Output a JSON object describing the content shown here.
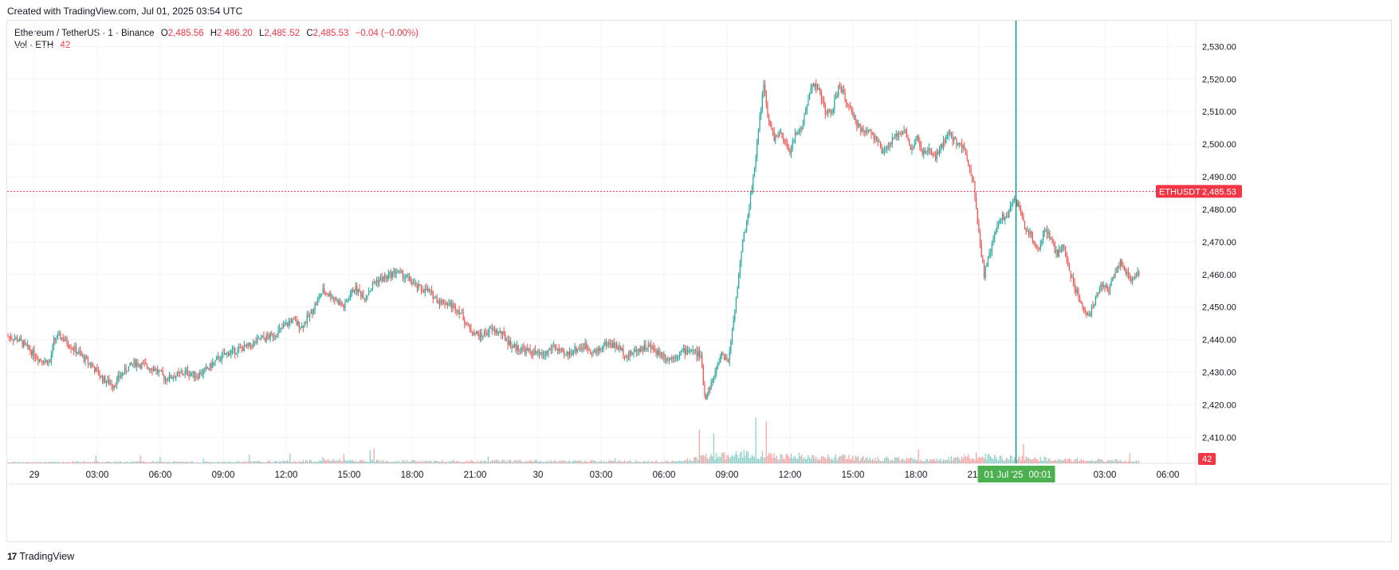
{
  "caption": "Created with TradingView.com, Jul 01, 2025 03:54 UTC",
  "brand": {
    "logo": "17",
    "name": "TradingView"
  },
  "legend": {
    "symbol": "Ethereum / TetherUS · 1 · Binance",
    "open_label": "O",
    "open": "2,485.56",
    "high_label": "H",
    "high": "2,486.20",
    "low_label": "L",
    "low": "2,485.52",
    "close_label": "C",
    "close": "2,485.53",
    "change": "−0.04 (−0.00%)",
    "vol_label": "Vol · ETH",
    "vol": "42"
  },
  "colors": {
    "up": "#26a69a",
    "down": "#ef5350",
    "crosshair": "#089981",
    "price_tag": "#f23645"
  },
  "price_tag": {
    "symbol": "ETHUSDT",
    "price": "2,485.53"
  },
  "volume_tag": "42",
  "crosshair_label": {
    "date": "01 Jul '25",
    "time": "00:01"
  },
  "chart_data": {
    "type": "candlestick",
    "title": "",
    "y_ticks": [
      "2,410.00",
      "2,420.00",
      "2,430.00",
      "2,440.00",
      "2,450.00",
      "2,460.00",
      "2,470.00",
      "2,480.00",
      "2,490.00",
      "2,500.00",
      "2,510.00",
      "2,520.00",
      "2,530.00"
    ],
    "x_ticks": [
      "29",
      "03:00",
      "06:00",
      "09:00",
      "12:00",
      "15:00",
      "18:00",
      "21:00",
      "30",
      "03:00",
      "06:00",
      "09:00",
      "12:00",
      "15:00",
      "18:00",
      "21:00",
      "03:00",
      "06:00"
    ],
    "x_range_hours": [
      0,
      54
    ],
    "y_range": [
      2402.5,
      2534.5
    ],
    "last_price": 2485.53,
    "crosshair_hour": 48.02,
    "close_path": [
      [
        0,
        2441
      ],
      [
        0.5,
        2440
      ],
      [
        1,
        2437
      ],
      [
        1.5,
        2434
      ],
      [
        2,
        2433
      ],
      [
        2.2,
        2440
      ],
      [
        2.5,
        2441
      ],
      [
        3,
        2438
      ],
      [
        3.5,
        2435
      ],
      [
        4,
        2432
      ],
      [
        4.5,
        2428
      ],
      [
        5,
        2426
      ],
      [
        5.5,
        2430
      ],
      [
        6,
        2433
      ],
      [
        6.5,
        2432
      ],
      [
        7,
        2431
      ],
      [
        7.5,
        2428
      ],
      [
        8,
        2429
      ],
      [
        8.5,
        2430
      ],
      [
        9,
        2429
      ],
      [
        9.5,
        2431
      ],
      [
        10,
        2434
      ],
      [
        10.5,
        2436
      ],
      [
        11,
        2437
      ],
      [
        11.5,
        2438
      ],
      [
        12,
        2440
      ],
      [
        12.5,
        2441
      ],
      [
        13,
        2443
      ],
      [
        13.5,
        2446
      ],
      [
        14,
        2444
      ],
      [
        14.5,
        2449
      ],
      [
        15,
        2455
      ],
      [
        15.5,
        2453
      ],
      [
        16,
        2450
      ],
      [
        16.5,
        2456
      ],
      [
        17,
        2453
      ],
      [
        17.5,
        2458
      ],
      [
        18,
        2459
      ],
      [
        18.5,
        2461
      ],
      [
        19,
        2459
      ],
      [
        19.5,
        2456
      ],
      [
        20,
        2455
      ],
      [
        20.5,
        2452
      ],
      [
        21,
        2451
      ],
      [
        21.5,
        2449
      ],
      [
        22,
        2443
      ],
      [
        22.5,
        2441
      ],
      [
        23,
        2443
      ],
      [
        23.5,
        2442
      ],
      [
        24,
        2438
      ],
      [
        24.5,
        2437
      ],
      [
        25,
        2436
      ],
      [
        25.5,
        2435
      ],
      [
        26,
        2438
      ],
      [
        26.5,
        2435
      ],
      [
        27,
        2437
      ],
      [
        27.5,
        2438
      ],
      [
        28,
        2436
      ],
      [
        28.5,
        2439
      ],
      [
        29,
        2438
      ],
      [
        29.5,
        2435
      ],
      [
        30,
        2437
      ],
      [
        30.5,
        2438
      ],
      [
        31,
        2436
      ],
      [
        31.5,
        2434
      ],
      [
        32,
        2436
      ],
      [
        32.5,
        2437
      ],
      [
        33,
        2435
      ],
      [
        33.2,
        2422
      ],
      [
        33.6,
        2428
      ],
      [
        34,
        2436
      ],
      [
        34.3,
        2433
      ],
      [
        34.6,
        2448
      ],
      [
        35,
        2470
      ],
      [
        35.3,
        2480
      ],
      [
        35.6,
        2495
      ],
      [
        35.8,
        2508
      ],
      [
        36,
        2518
      ],
      [
        36.2,
        2508
      ],
      [
        36.5,
        2502
      ],
      [
        36.8,
        2503
      ],
      [
        37,
        2500
      ],
      [
        37.3,
        2498
      ],
      [
        37.5,
        2503
      ],
      [
        37.8,
        2505
      ],
      [
        38,
        2510
      ],
      [
        38.3,
        2519
      ],
      [
        38.6,
        2517
      ],
      [
        39,
        2509
      ],
      [
        39.3,
        2511
      ],
      [
        39.6,
        2518
      ],
      [
        39.9,
        2514
      ],
      [
        40.2,
        2509
      ],
      [
        40.5,
        2506
      ],
      [
        40.8,
        2503
      ],
      [
        41,
        2505
      ],
      [
        41.4,
        2501
      ],
      [
        41.7,
        2497
      ],
      [
        42,
        2500
      ],
      [
        42.4,
        2503
      ],
      [
        42.7,
        2505
      ],
      [
        43,
        2498
      ],
      [
        43.3,
        2502
      ],
      [
        43.6,
        2497
      ],
      [
        43.9,
        2498
      ],
      [
        44.2,
        2496
      ],
      [
        44.5,
        2500
      ],
      [
        44.8,
        2503
      ],
      [
        45.1,
        2501
      ],
      [
        45.4,
        2500
      ],
      [
        45.7,
        2496
      ],
      [
        46,
        2488
      ],
      [
        46.3,
        2470
      ],
      [
        46.5,
        2460
      ],
      [
        46.8,
        2467
      ],
      [
        47,
        2472
      ],
      [
        47.3,
        2478
      ],
      [
        47.6,
        2477
      ],
      [
        47.9,
        2484
      ],
      [
        48.2,
        2480
      ],
      [
        48.5,
        2474
      ],
      [
        48.8,
        2471
      ],
      [
        49.1,
        2468
      ],
      [
        49.4,
        2474
      ],
      [
        49.7,
        2470
      ],
      [
        50,
        2466
      ],
      [
        50.3,
        2469
      ],
      [
        50.6,
        2460
      ],
      [
        50.9,
        2455
      ],
      [
        51.2,
        2450
      ],
      [
        51.5,
        2447
      ],
      [
        51.8,
        2453
      ],
      [
        52.1,
        2457
      ],
      [
        52.4,
        2455
      ],
      [
        52.7,
        2460
      ],
      [
        53,
        2464
      ],
      [
        53.3,
        2460
      ],
      [
        53.6,
        2458
      ],
      [
        53.9,
        2461
      ]
    ],
    "volume_path": [
      [
        0,
        1
      ],
      [
        5,
        1.5
      ],
      [
        10,
        1.2
      ],
      [
        14,
        2
      ],
      [
        15,
        3
      ],
      [
        17,
        2.5
      ],
      [
        20,
        2
      ],
      [
        24,
        2.5
      ],
      [
        28,
        2
      ],
      [
        32,
        1.8
      ],
      [
        33,
        6
      ],
      [
        35,
        9
      ],
      [
        37,
        7
      ],
      [
        39,
        6
      ],
      [
        41,
        5
      ],
      [
        44,
        3
      ],
      [
        46,
        7
      ],
      [
        48,
        5
      ],
      [
        50,
        4
      ],
      [
        52,
        3
      ],
      [
        54,
        2
      ]
    ]
  }
}
